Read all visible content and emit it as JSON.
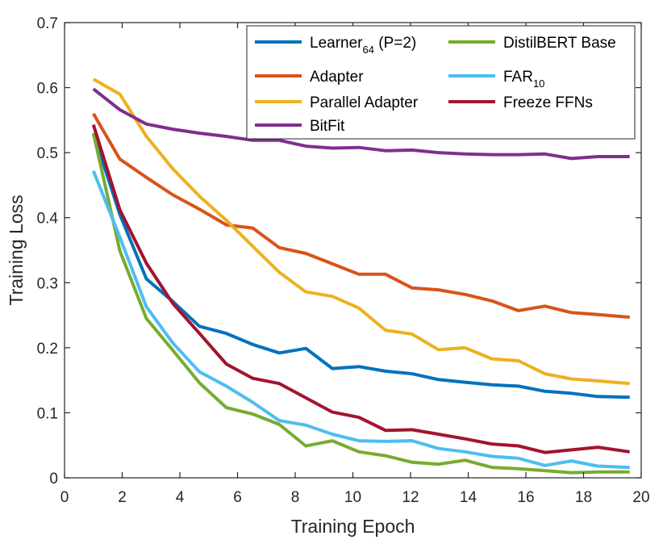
{
  "chart_data": {
    "type": "line",
    "xlabel": "Training Epoch",
    "ylabel": "Training Loss",
    "xlim": [
      0,
      20
    ],
    "ylim": [
      0,
      0.7
    ],
    "xticks": [
      0,
      2,
      4,
      6,
      8,
      10,
      12,
      14,
      16,
      18,
      20
    ],
    "yticks": [
      0,
      0.1,
      0.2,
      0.3,
      0.4,
      0.5,
      0.6,
      0.7
    ],
    "grid": false,
    "legend_position": "top-right",
    "x": [
      1,
      1.92,
      2.84,
      3.76,
      4.68,
      5.61,
      6.53,
      7.45,
      8.37,
      9.29,
      10.21,
      11.13,
      12.05,
      12.97,
      13.89,
      14.82,
      15.74,
      16.66,
      17.58,
      18.5,
      19.6
    ],
    "series": [
      {
        "name": "Learner",
        "name_sub": "64",
        "name_suffix": " (P=2)",
        "color": "#0072BD",
        "values": [
          0.53,
          0.405,
          0.306,
          0.271,
          0.233,
          0.222,
          0.205,
          0.192,
          0.199,
          0.168,
          0.171,
          0.164,
          0.16,
          0.151,
          0.147,
          0.143,
          0.141,
          0.133,
          0.13,
          0.125,
          0.124
        ]
      },
      {
        "name": "Adapter",
        "color": "#D95319",
        "values": [
          0.56,
          0.49,
          0.462,
          0.435,
          0.413,
          0.389,
          0.384,
          0.354,
          0.345,
          0.329,
          0.313,
          0.313,
          0.292,
          0.289,
          0.282,
          0.272,
          0.257,
          0.264,
          0.254,
          0.251,
          0.247
        ]
      },
      {
        "name": "Parallel Adapter",
        "color": "#EDB120",
        "values": [
          0.613,
          0.59,
          0.525,
          0.475,
          0.433,
          0.396,
          0.356,
          0.316,
          0.286,
          0.279,
          0.261,
          0.227,
          0.221,
          0.197,
          0.2,
          0.183,
          0.18,
          0.16,
          0.152,
          0.149,
          0.145
        ]
      },
      {
        "name": "BitFit",
        "color": "#7E2F8E",
        "values": [
          0.598,
          0.566,
          0.544,
          0.536,
          0.53,
          0.525,
          0.519,
          0.519,
          0.51,
          0.507,
          0.508,
          0.503,
          0.504,
          0.5,
          0.498,
          0.497,
          0.497,
          0.498,
          0.491,
          0.494,
          0.494
        ]
      },
      {
        "name": "DistilBERT Base",
        "color": "#77AC30",
        "values": [
          0.53,
          0.349,
          0.245,
          0.196,
          0.146,
          0.108,
          0.098,
          0.082,
          0.049,
          0.057,
          0.04,
          0.034,
          0.024,
          0.021,
          0.027,
          0.016,
          0.014,
          0.011,
          0.008,
          0.009,
          0.009
        ]
      },
      {
        "name": "FAR",
        "name_sub": "10",
        "name_suffix": "",
        "color": "#4DBEEE",
        "values": [
          0.472,
          0.37,
          0.263,
          0.207,
          0.163,
          0.141,
          0.116,
          0.088,
          0.081,
          0.067,
          0.057,
          0.056,
          0.057,
          0.045,
          0.04,
          0.033,
          0.03,
          0.019,
          0.026,
          0.018,
          0.016
        ]
      },
      {
        "name": "Freeze FFNs",
        "color": "#A2142F",
        "values": [
          0.543,
          0.412,
          0.33,
          0.268,
          0.222,
          0.175,
          0.153,
          0.145,
          0.123,
          0.101,
          0.093,
          0.073,
          0.074,
          0.067,
          0.06,
          0.052,
          0.049,
          0.039,
          0.043,
          0.047,
          0.04
        ]
      }
    ]
  }
}
